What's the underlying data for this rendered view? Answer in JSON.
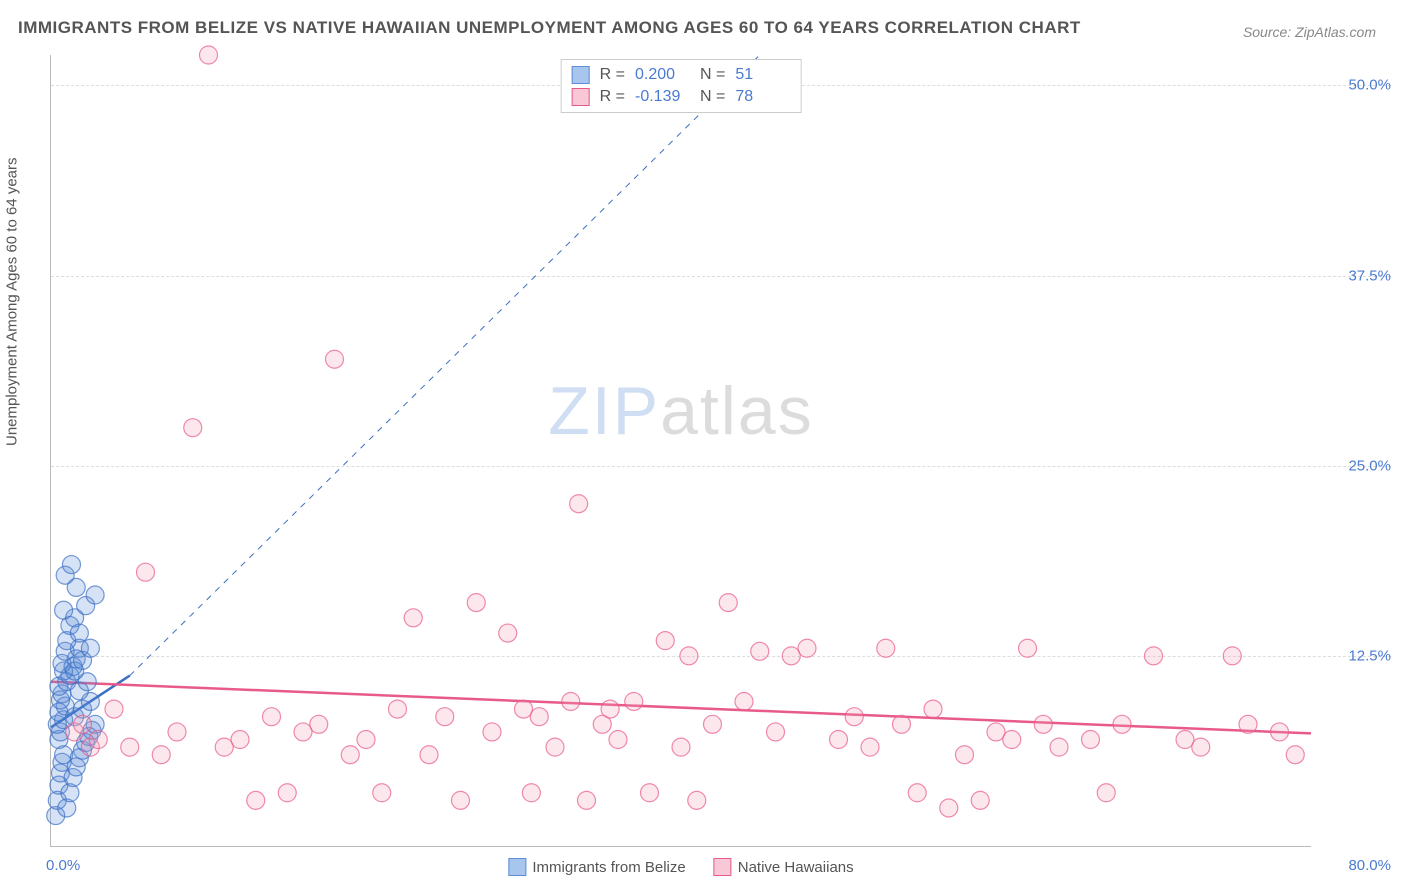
{
  "title": "IMMIGRANTS FROM BELIZE VS NATIVE HAWAIIAN UNEMPLOYMENT AMONG AGES 60 TO 64 YEARS CORRELATION CHART",
  "source": "Source: ZipAtlas.com",
  "y_axis_label": "Unemployment Among Ages 60 to 64 years",
  "watermark_zip": "ZIP",
  "watermark_atlas": "atlas",
  "chart": {
    "type": "scatter",
    "xlim": [
      0,
      80
    ],
    "ylim": [
      0,
      52
    ],
    "x_ticks": [
      {
        "value": 0,
        "label": "0.0%"
      },
      {
        "value": 80,
        "label": "80.0%"
      }
    ],
    "y_ticks": [
      {
        "value": 12.5,
        "label": "12.5%"
      },
      {
        "value": 25.0,
        "label": "25.0%"
      },
      {
        "value": 37.5,
        "label": "37.5%"
      },
      {
        "value": 50.0,
        "label": "50.0%"
      }
    ],
    "gridline_color": "#dddddd",
    "axis_color": "#bbbbbb",
    "background_color": "#ffffff",
    "marker_radius": 9,
    "marker_fill_opacity": 0.25,
    "marker_stroke_opacity": 0.7,
    "marker_stroke_width": 1.2,
    "series": [
      {
        "id": "belize",
        "label": "Immigrants from Belize",
        "color": "#5b8dd8",
        "stroke": "#3b6fc4",
        "R": "0.200",
        "N": "51",
        "trend": {
          "x1": 0,
          "y1": 7.8,
          "x2": 5,
          "y2": 11.2,
          "solid_until_x": 5,
          "dash_to_x": 45,
          "dash_to_y": 52
        },
        "points": [
          [
            0.3,
            2.0
          ],
          [
            0.4,
            3.0
          ],
          [
            0.5,
            4.0
          ],
          [
            0.6,
            4.8
          ],
          [
            0.7,
            5.5
          ],
          [
            0.8,
            6.0
          ],
          [
            0.5,
            7.0
          ],
          [
            0.6,
            7.5
          ],
          [
            0.4,
            8.0
          ],
          [
            0.8,
            8.3
          ],
          [
            0.5,
            8.8
          ],
          [
            0.9,
            9.2
          ],
          [
            0.6,
            9.6
          ],
          [
            0.7,
            10.0
          ],
          [
            0.5,
            10.5
          ],
          [
            1.0,
            10.8
          ],
          [
            1.2,
            11.2
          ],
          [
            0.8,
            11.5
          ],
          [
            1.4,
            11.8
          ],
          [
            0.7,
            12.0
          ],
          [
            1.6,
            12.3
          ],
          [
            0.9,
            12.8
          ],
          [
            1.8,
            13.0
          ],
          [
            1.0,
            13.5
          ],
          [
            1.2,
            14.5
          ],
          [
            1.5,
            15.0
          ],
          [
            0.8,
            15.5
          ],
          [
            1.6,
            17.0
          ],
          [
            0.9,
            17.8
          ],
          [
            1.3,
            18.5
          ],
          [
            1.0,
            2.5
          ],
          [
            1.2,
            3.5
          ],
          [
            1.4,
            4.5
          ],
          [
            1.6,
            5.2
          ],
          [
            1.8,
            5.8
          ],
          [
            2.0,
            6.3
          ],
          [
            2.2,
            6.8
          ],
          [
            2.4,
            7.2
          ],
          [
            2.6,
            7.6
          ],
          [
            2.8,
            8.0
          ],
          [
            1.5,
            8.5
          ],
          [
            2.0,
            9.0
          ],
          [
            2.5,
            9.5
          ],
          [
            1.8,
            10.2
          ],
          [
            2.3,
            10.8
          ],
          [
            1.5,
            11.5
          ],
          [
            2.0,
            12.2
          ],
          [
            2.5,
            13.0
          ],
          [
            1.8,
            14.0
          ],
          [
            2.2,
            15.8
          ],
          [
            2.8,
            16.5
          ]
        ]
      },
      {
        "id": "hawaiian",
        "label": "Native Hawaiians",
        "color": "#f2a0b8",
        "stroke": "#e85a8a",
        "R": "-0.139",
        "N": "78",
        "trend": {
          "x1": 0,
          "y1": 10.8,
          "x2": 80,
          "y2": 7.4
        },
        "points": [
          [
            1.5,
            7.5
          ],
          [
            2.0,
            8.0
          ],
          [
            2.5,
            6.5
          ],
          [
            3.0,
            7.0
          ],
          [
            4.0,
            9.0
          ],
          [
            5.0,
            6.5
          ],
          [
            6.0,
            18.0
          ],
          [
            7.0,
            6.0
          ],
          [
            8.0,
            7.5
          ],
          [
            9.0,
            27.5
          ],
          [
            10.0,
            52.0
          ],
          [
            11.0,
            6.5
          ],
          [
            12.0,
            7.0
          ],
          [
            13.0,
            3.0
          ],
          [
            14.0,
            8.5
          ],
          [
            15.0,
            3.5
          ],
          [
            16.0,
            7.5
          ],
          [
            17.0,
            8.0
          ],
          [
            18.0,
            32.0
          ],
          [
            19.0,
            6.0
          ],
          [
            20.0,
            7.0
          ],
          [
            21.0,
            3.5
          ],
          [
            22.0,
            9.0
          ],
          [
            23.0,
            15.0
          ],
          [
            24.0,
            6.0
          ],
          [
            25.0,
            8.5
          ],
          [
            26.0,
            3.0
          ],
          [
            27.0,
            16.0
          ],
          [
            28.0,
            7.5
          ],
          [
            29.0,
            14.0
          ],
          [
            30.0,
            9.0
          ],
          [
            30.5,
            3.5
          ],
          [
            31.0,
            8.5
          ],
          [
            32.0,
            6.5
          ],
          [
            33.0,
            9.5
          ],
          [
            33.5,
            22.5
          ],
          [
            34.0,
            3.0
          ],
          [
            35.0,
            8.0
          ],
          [
            35.5,
            9.0
          ],
          [
            36.0,
            7.0
          ],
          [
            37.0,
            9.5
          ],
          [
            38.0,
            3.5
          ],
          [
            39.0,
            13.5
          ],
          [
            40.0,
            6.5
          ],
          [
            40.5,
            12.5
          ],
          [
            41.0,
            3.0
          ],
          [
            42.0,
            8.0
          ],
          [
            43.0,
            16.0
          ],
          [
            44.0,
            9.5
          ],
          [
            45.0,
            12.8
          ],
          [
            46.0,
            7.5
          ],
          [
            47.0,
            12.5
          ],
          [
            48.0,
            13.0
          ],
          [
            50.0,
            7.0
          ],
          [
            51.0,
            8.5
          ],
          [
            52.0,
            6.5
          ],
          [
            53.0,
            13.0
          ],
          [
            54.0,
            8.0
          ],
          [
            55.0,
            3.5
          ],
          [
            56.0,
            9.0
          ],
          [
            57.0,
            2.5
          ],
          [
            58.0,
            6.0
          ],
          [
            59.0,
            3.0
          ],
          [
            60.0,
            7.5
          ],
          [
            61.0,
            7.0
          ],
          [
            62.0,
            13.0
          ],
          [
            63.0,
            8.0
          ],
          [
            64.0,
            6.5
          ],
          [
            66.0,
            7.0
          ],
          [
            67.0,
            3.5
          ],
          [
            68.0,
            8.0
          ],
          [
            70.0,
            12.5
          ],
          [
            72.0,
            7.0
          ],
          [
            73.0,
            6.5
          ],
          [
            75.0,
            12.5
          ],
          [
            76.0,
            8.0
          ],
          [
            78.0,
            7.5
          ],
          [
            79.0,
            6.0
          ]
        ]
      }
    ]
  },
  "legend_bottom": [
    {
      "label": "Immigrants from Belize",
      "fill": "#a8c5ed",
      "stroke": "#5b8dd8"
    },
    {
      "label": "Native Hawaiians",
      "fill": "#f8c8d6",
      "stroke": "#e85a8a"
    }
  ],
  "stats_labels": {
    "R": "R =",
    "N": "N ="
  }
}
